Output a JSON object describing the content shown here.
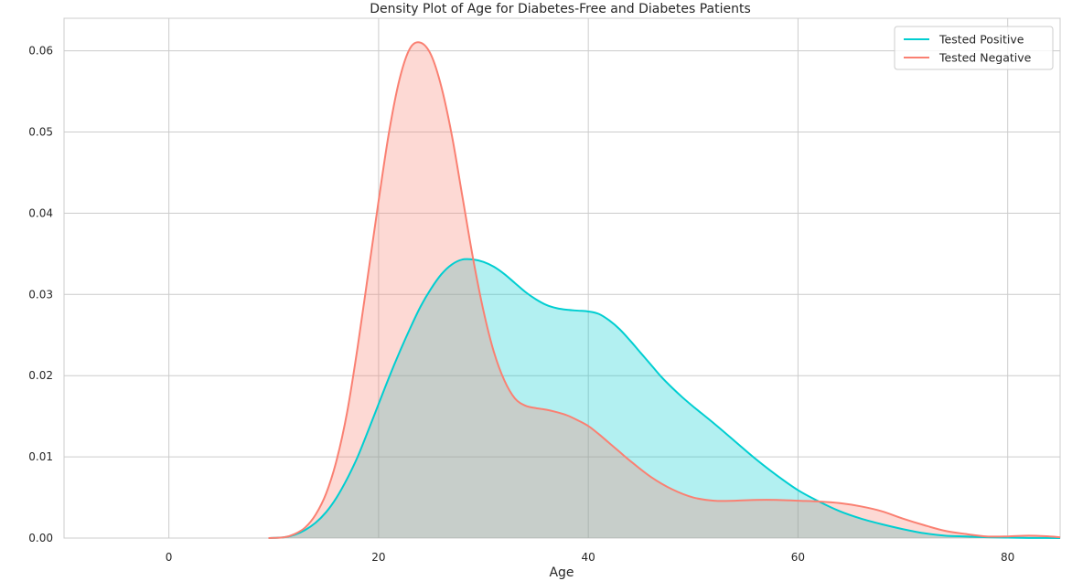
{
  "chart_data": {
    "type": "area",
    "title": "Density Plot of Age for Diabetes-Free and Diabetes Patients",
    "xlabel": "Age",
    "ylabel": "",
    "xlim": [
      -10,
      85
    ],
    "ylim": [
      0,
      0.064
    ],
    "xticks": [
      0,
      20,
      40,
      60,
      80
    ],
    "xtick_labels": [
      "0",
      "20",
      "40",
      "60",
      "80"
    ],
    "yticks": [
      0,
      0.01,
      0.02,
      0.03,
      0.04,
      0.05,
      0.06
    ],
    "ytick_labels": [
      "0.00",
      "0.01",
      "0.02",
      "0.03",
      "0.04",
      "0.05",
      "0.06"
    ],
    "grid": true,
    "legend_position": "top-right",
    "series": [
      {
        "name": "Tested Positive",
        "color": "#00ced1",
        "fill": "#00ced1",
        "fill_opacity": 0.3,
        "x": [
          9.5,
          11,
          12,
          13,
          14,
          15,
          16,
          17,
          18,
          19,
          20,
          21,
          22,
          23,
          24,
          25,
          26,
          27,
          28,
          29,
          30,
          31,
          32,
          33,
          34,
          35,
          36,
          37,
          38,
          39,
          40,
          41,
          42,
          43,
          44,
          45,
          46,
          47,
          48,
          49,
          50,
          52,
          54,
          56,
          58,
          60,
          62,
          64,
          66,
          68,
          70,
          72,
          74,
          76,
          78,
          80,
          82,
          85
        ],
        "y": [
          0.0,
          0.0001,
          0.0004,
          0.001,
          0.0019,
          0.0032,
          0.005,
          0.0073,
          0.01,
          0.0132,
          0.0165,
          0.0198,
          0.0229,
          0.0258,
          0.0285,
          0.0307,
          0.0325,
          0.0337,
          0.0343,
          0.0343,
          0.034,
          0.0334,
          0.0325,
          0.0314,
          0.0303,
          0.0294,
          0.0287,
          0.0283,
          0.0281,
          0.028,
          0.0279,
          0.0276,
          0.0268,
          0.0257,
          0.0243,
          0.0228,
          0.0213,
          0.0198,
          0.0185,
          0.0173,
          0.0162,
          0.0141,
          0.0119,
          0.0097,
          0.0077,
          0.0059,
          0.0045,
          0.0033,
          0.0024,
          0.0017,
          0.0011,
          0.0006,
          0.0003,
          0.0002,
          0.0001,
          5e-05,
          2e-05,
          0.0
        ]
      },
      {
        "name": "Tested Negative",
        "color": "#fa8072",
        "fill": "#fa8072",
        "fill_opacity": 0.3,
        "x": [
          9.5,
          11,
          12,
          13,
          14,
          15,
          16,
          17,
          18,
          19,
          20,
          21,
          22,
          23,
          24,
          25,
          26,
          27,
          28,
          29,
          30,
          31,
          32,
          33,
          34,
          35,
          36,
          37,
          38,
          39,
          40,
          41,
          42,
          43,
          44,
          46,
          48,
          50,
          52,
          54,
          56,
          58,
          60,
          62,
          64,
          66,
          68,
          70,
          72,
          74,
          76,
          78,
          80,
          82,
          84,
          85
        ],
        "y": [
          0.0,
          0.0001,
          0.0005,
          0.0013,
          0.0029,
          0.0055,
          0.0096,
          0.0155,
          0.0235,
          0.0325,
          0.0415,
          0.05,
          0.0565,
          0.0603,
          0.061,
          0.0595,
          0.0555,
          0.0495,
          0.042,
          0.0345,
          0.028,
          0.0229,
          0.0194,
          0.0172,
          0.0163,
          0.016,
          0.0158,
          0.0155,
          0.0151,
          0.0145,
          0.0138,
          0.0128,
          0.0117,
          0.0106,
          0.0095,
          0.0075,
          0.006,
          0.005,
          0.0046,
          0.0046,
          0.0047,
          0.0047,
          0.0046,
          0.0045,
          0.0043,
          0.0039,
          0.0033,
          0.0024,
          0.0016,
          0.0009,
          0.0005,
          0.0002,
          0.0002,
          0.0003,
          0.0002,
          0.0001
        ]
      }
    ]
  }
}
